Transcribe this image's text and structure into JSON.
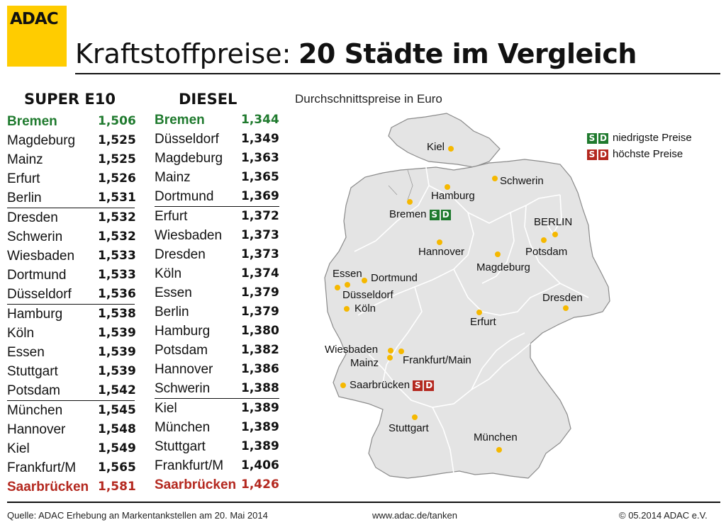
{
  "logo": "ADAC",
  "title": {
    "light": "Kraftstoffpreise:",
    "bold": "20 Städte im Vergleich"
  },
  "super": {
    "heading": "SUPER E10",
    "rows": [
      {
        "city": "Bremen",
        "price": "1,506"
      },
      {
        "city": "Magdeburg",
        "price": "1,525"
      },
      {
        "city": "Mainz",
        "price": "1,525"
      },
      {
        "city": "Erfurt",
        "price": "1,526"
      },
      {
        "city": "Berlin",
        "price": "1,531"
      },
      {
        "city": "Dresden",
        "price": "1,532"
      },
      {
        "city": "Schwerin",
        "price": "1,532"
      },
      {
        "city": "Wiesbaden",
        "price": "1,533"
      },
      {
        "city": "Dortmund",
        "price": "1,533"
      },
      {
        "city": "Düsseldorf",
        "price": "1,536"
      },
      {
        "city": "Hamburg",
        "price": "1,538"
      },
      {
        "city": "Köln",
        "price": "1,539"
      },
      {
        "city": "Essen",
        "price": "1,539"
      },
      {
        "city": "Stuttgart",
        "price": "1,539"
      },
      {
        "city": "Potsdam",
        "price": "1,542"
      },
      {
        "city": "München",
        "price": "1,545"
      },
      {
        "city": "Hannover",
        "price": "1,548"
      },
      {
        "city": "Kiel",
        "price": "1,549"
      },
      {
        "city": "Frankfurt/M",
        "price": "1,565"
      },
      {
        "city": "Saarbrücken",
        "price": "1,581"
      }
    ]
  },
  "diesel": {
    "heading": "DIESEL",
    "rows": [
      {
        "city": "Bremen",
        "price": "1,344"
      },
      {
        "city": "Düsseldorf",
        "price": "1,349"
      },
      {
        "city": "Magdeburg",
        "price": "1,363"
      },
      {
        "city": "Mainz",
        "price": "1,365"
      },
      {
        "city": "Dortmund",
        "price": "1,369"
      },
      {
        "city": "Erfurt",
        "price": "1,372"
      },
      {
        "city": "Wiesbaden",
        "price": "1,373"
      },
      {
        "city": "Dresden",
        "price": "1,373"
      },
      {
        "city": "Köln",
        "price": "1,374"
      },
      {
        "city": "Essen",
        "price": "1,379"
      },
      {
        "city": "Berlin",
        "price": "1,379"
      },
      {
        "city": "Hamburg",
        "price": "1,380"
      },
      {
        "city": "Potsdam",
        "price": "1,382"
      },
      {
        "city": "Hannover",
        "price": "1,386"
      },
      {
        "city": "Schwerin",
        "price": "1,388"
      },
      {
        "city": "Kiel",
        "price": "1,389"
      },
      {
        "city": "München",
        "price": "1,389"
      },
      {
        "city": "Stuttgart",
        "price": "1,389"
      },
      {
        "city": "Frankfurt/M",
        "price": "1,406"
      },
      {
        "city": "Saarbrücken",
        "price": "1,426"
      }
    ]
  },
  "map": {
    "subtitle": "Durchschnittspreise in Euro",
    "legend": {
      "badge_s": "S",
      "badge_d": "D",
      "low": "niedrigste Preise",
      "high": "höchste Preise"
    },
    "cities": {
      "kiel": "Kiel",
      "schwerin": "Schwerin",
      "hamburg": "Hamburg",
      "bremen": "Bremen",
      "berlin": "BERLIN",
      "potsdam": "Potsdam",
      "hannover": "Hannover",
      "magdeburg": "Magdeburg",
      "essen": "Essen",
      "dortmund": "Dortmund",
      "duesseldorf": "Düsseldorf",
      "koeln": "Köln",
      "dresden": "Dresden",
      "erfurt": "Erfurt",
      "wiesbaden": "Wiesbaden",
      "mainz": "Mainz",
      "frankfurt": "Frankfurt/Main",
      "saarbruecken": "Saarbrücken",
      "stuttgart": "Stuttgart",
      "muenchen": "München"
    },
    "colors": {
      "land": "#e4e4e4",
      "border": "#8a8a8a",
      "dot": "#f5b800",
      "low": "#1f7a2e",
      "high": "#b4281f"
    }
  },
  "footer": {
    "source": "Quelle: ADAC Erhebung an Markentankstellen am 20. Mai 2014",
    "url": "www.adac.de/tanken",
    "copyright": "© 05.2014  ADAC e.V."
  }
}
